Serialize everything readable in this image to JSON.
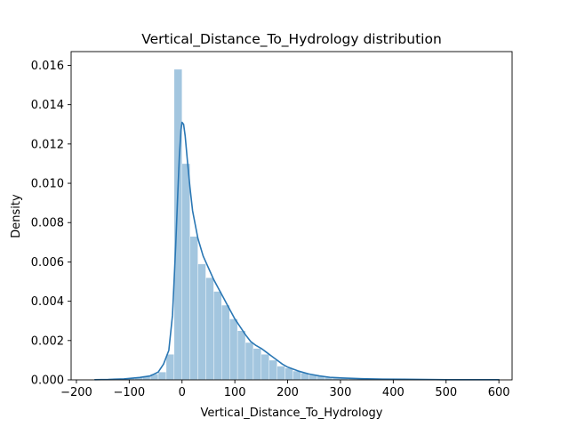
{
  "chart_data": {
    "type": "bar",
    "title": "Vertical_Distance_To_Hydrology distribution",
    "xlabel": "Vertical_Distance_To_Hydrology",
    "ylabel": "Density",
    "xlim": [
      -210,
      625
    ],
    "ylim": [
      0,
      0.0167
    ],
    "grid": false,
    "xticks": [
      -200,
      -100,
      0,
      100,
      200,
      300,
      400,
      500,
      600
    ],
    "xtick_labels": [
      "−200",
      "−100",
      "0",
      "100",
      "200",
      "300",
      "400",
      "500",
      "600"
    ],
    "yticks": [
      0,
      0.002,
      0.004,
      0.006,
      0.008,
      0.01,
      0.012,
      0.014,
      0.016
    ],
    "ytick_labels": [
      "0.000",
      "0.002",
      "0.004",
      "0.006",
      "0.008",
      "0.010",
      "0.012",
      "0.014",
      "0.016"
    ],
    "bar_color": "#a3c6df",
    "line_color": "#2a77b4",
    "histogram": {
      "bin_edges": [
        -165,
        -150,
        -135,
        -120,
        -105,
        -90,
        -75,
        -60,
        -45,
        -30,
        -15,
        0,
        15,
        30,
        45,
        60,
        75,
        90,
        105,
        120,
        135,
        150,
        165,
        180,
        195,
        210,
        225,
        240,
        255,
        270,
        285,
        300,
        315,
        330,
        345,
        360,
        375,
        390,
        405,
        420,
        435,
        450,
        465,
        480,
        495,
        510,
        525,
        540,
        555,
        570,
        585,
        600
      ],
      "densities": [
        1e-05,
        2e-05,
        3e-05,
        5e-05,
        8e-05,
        0.00012,
        0.0002,
        0.0003,
        0.0004,
        0.0013,
        0.0158,
        0.011,
        0.0073,
        0.0059,
        0.0052,
        0.0045,
        0.0038,
        0.0031,
        0.0025,
        0.0019,
        0.0016,
        0.0013,
        0.001,
        0.0007,
        0.0006,
        0.00045,
        0.00035,
        0.00025,
        0.0002,
        0.00015,
        0.00012,
        0.0001,
        8e-05,
        6e-05,
        5e-05,
        4e-05,
        3e-05,
        3e-05,
        2e-05,
        2e-05,
        1e-05,
        1e-05,
        1e-05,
        1e-05,
        1e-05,
        1e-05,
        1e-05,
        1e-05,
        1e-05,
        1e-05,
        1e-05
      ]
    },
    "kde": {
      "x": [
        -165,
        -140,
        -110,
        -80,
        -60,
        -45,
        -35,
        -25,
        -18,
        -12,
        -8,
        -5,
        -2,
        0,
        3,
        6,
        10,
        15,
        20,
        30,
        40,
        50,
        60,
        70,
        80,
        90,
        100,
        110,
        120,
        130,
        140,
        150,
        160,
        170,
        180,
        190,
        200,
        220,
        240,
        260,
        280,
        300,
        340,
        380,
        420,
        460,
        500,
        550,
        600
      ],
      "y": [
        1e-05,
        2e-05,
        5e-05,
        0.00012,
        0.0002,
        0.0004,
        0.0008,
        0.0015,
        0.0033,
        0.0068,
        0.0095,
        0.0114,
        0.0127,
        0.0131,
        0.013,
        0.0124,
        0.0112,
        0.0098,
        0.0086,
        0.0072,
        0.0063,
        0.0057,
        0.0051,
        0.0046,
        0.0041,
        0.0036,
        0.0031,
        0.0027,
        0.0023,
        0.00195,
        0.00175,
        0.0016,
        0.0014,
        0.0012,
        0.001,
        0.0008,
        0.00065,
        0.00045,
        0.0003,
        0.0002,
        0.00013,
        0.0001,
        6e-05,
        4e-05,
        3e-05,
        2e-05,
        1e-05,
        1e-05,
        1e-05
      ]
    }
  }
}
